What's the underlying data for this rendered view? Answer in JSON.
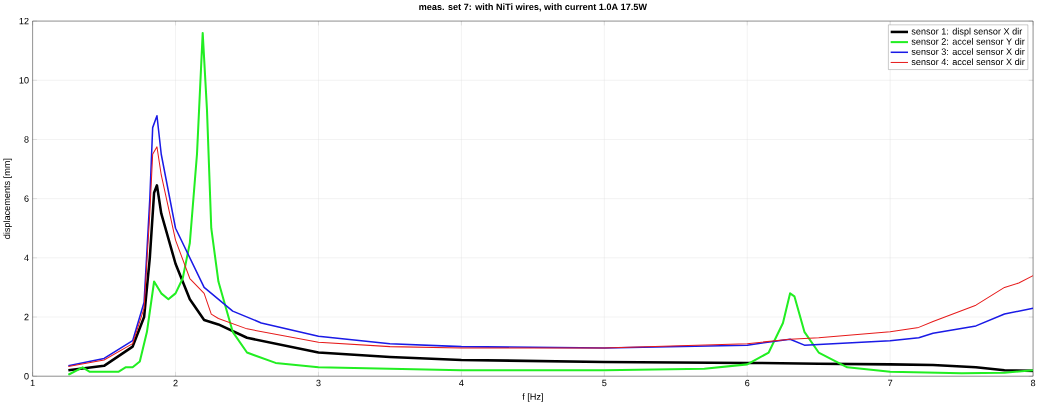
{
  "chart_data": {
    "type": "line",
    "title": "meas. set 7: with NiTi wires, with current 1.0A 17.5W",
    "xlabel": "f [Hz]",
    "ylabel": "displacements [mm]",
    "xlim": [
      1,
      8
    ],
    "ylim": [
      0,
      12
    ],
    "xticks": [
      1,
      2,
      3,
      4,
      5,
      6,
      7,
      8
    ],
    "yticks": [
      0,
      2,
      4,
      6,
      8,
      10,
      12
    ],
    "grid": true,
    "legend": "top right",
    "marker": "none",
    "line_style": "solid",
    "series": [
      {
        "name": "sensor 1: displ sensor X dir",
        "color": "#000000",
        "x": [
          1.25,
          1.5,
          1.7,
          1.78,
          1.82,
          1.85,
          1.87,
          1.9,
          2.0,
          2.1,
          2.2,
          2.3,
          2.5,
          3,
          3.5,
          4,
          5,
          6,
          6.5,
          7,
          7.3,
          7.6,
          7.8,
          8
        ],
        "values": [
          0.2,
          0.35,
          1.0,
          2.0,
          4.0,
          6.2,
          6.45,
          5.5,
          3.8,
          2.6,
          1.9,
          1.75,
          1.3,
          0.8,
          0.65,
          0.55,
          0.48,
          0.45,
          0.42,
          0.4,
          0.38,
          0.3,
          0.2,
          0.18
        ]
      },
      {
        "name": "sensor 2: accel sensor Y dir",
        "color": "#22ee22",
        "x": [
          1.25,
          1.35,
          1.4,
          1.6,
          1.65,
          1.7,
          1.75,
          1.8,
          1.85,
          1.9,
          1.95,
          2.0,
          2.05,
          2.1,
          2.15,
          2.19,
          2.22,
          2.25,
          2.3,
          2.4,
          2.5,
          2.7,
          3,
          4,
          5,
          5.7,
          6,
          6.15,
          6.25,
          6.3,
          6.33,
          6.4,
          6.5,
          6.7,
          7,
          7.5,
          7.8,
          8
        ],
        "values": [
          0.05,
          0.3,
          0.15,
          0.15,
          0.3,
          0.3,
          0.5,
          1.5,
          3.2,
          2.8,
          2.6,
          2.8,
          3.3,
          4.5,
          7.5,
          11.6,
          9.0,
          5.0,
          3.2,
          1.5,
          0.8,
          0.45,
          0.3,
          0.2,
          0.2,
          0.25,
          0.4,
          0.8,
          1.8,
          2.8,
          2.7,
          1.5,
          0.8,
          0.3,
          0.15,
          0.1,
          0.12,
          0.2
        ]
      },
      {
        "name": "sensor 3: accel sensor X dir",
        "color": "#1a1ae6",
        "x": [
          1.25,
          1.5,
          1.7,
          1.78,
          1.82,
          1.84,
          1.87,
          1.9,
          2.0,
          2.2,
          2.4,
          2.6,
          3,
          3.5,
          4,
          5,
          6,
          6.3,
          6.4,
          7,
          7.2,
          7.3,
          7.6,
          7.8,
          8
        ],
        "values": [
          0.35,
          0.6,
          1.2,
          2.5,
          6.0,
          8.4,
          8.8,
          7.5,
          5.0,
          3.0,
          2.2,
          1.8,
          1.35,
          1.1,
          1.0,
          0.95,
          1.05,
          1.25,
          1.05,
          1.2,
          1.3,
          1.45,
          1.7,
          2.1,
          2.3
        ]
      },
      {
        "name": "sensor 4: accel sensor X dir",
        "color": "#e61a1a",
        "x": [
          1.25,
          1.5,
          1.7,
          1.78,
          1.82,
          1.84,
          1.87,
          1.9,
          2.0,
          2.1,
          2.2,
          2.25,
          2.3,
          2.5,
          3,
          3.5,
          4,
          5,
          6,
          6.3,
          6.5,
          7,
          7.2,
          7.3,
          7.6,
          7.8,
          7.9,
          8
        ],
        "values": [
          0.33,
          0.55,
          1.1,
          2.3,
          5.5,
          7.5,
          7.75,
          6.8,
          4.6,
          3.3,
          2.8,
          2.1,
          1.95,
          1.6,
          1.15,
          1.0,
          0.95,
          0.95,
          1.1,
          1.25,
          1.3,
          1.5,
          1.65,
          1.85,
          2.4,
          3.0,
          3.15,
          3.4
        ]
      }
    ]
  }
}
